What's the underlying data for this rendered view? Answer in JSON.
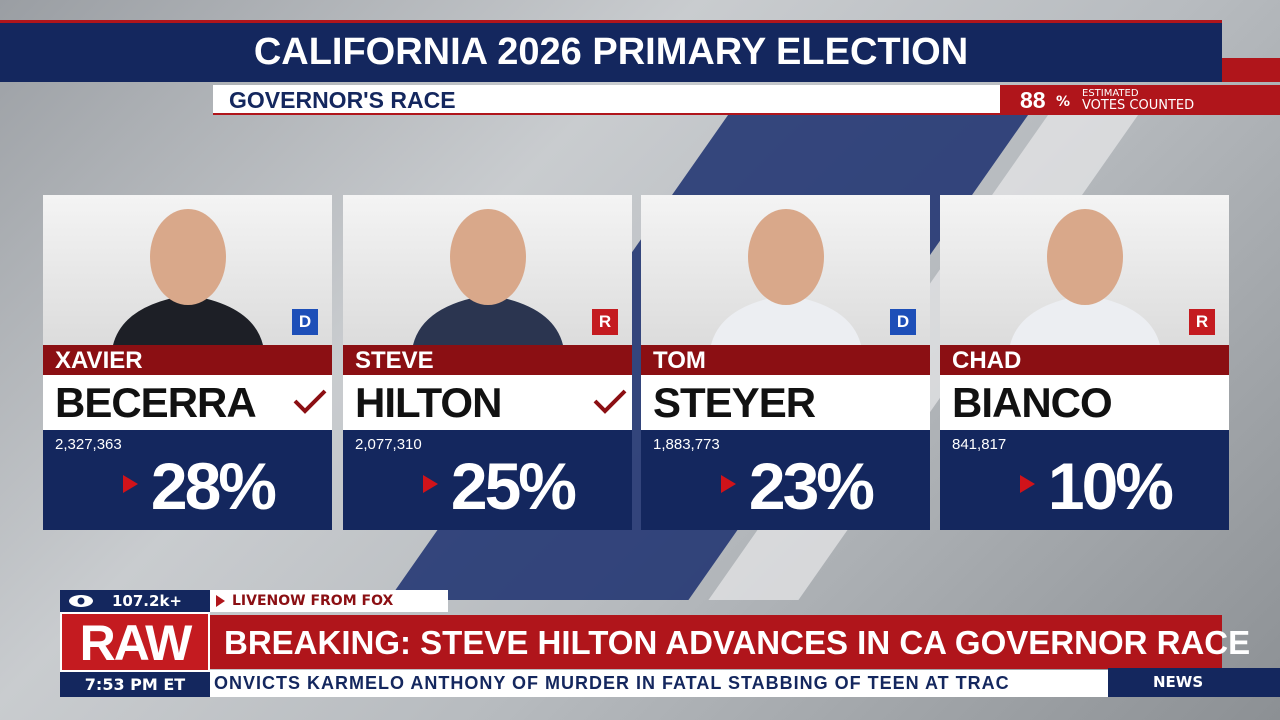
{
  "header": {
    "title": "CALIFORNIA 2026 PRIMARY ELECTION",
    "subtitle": "GOVERNOR'S RACE",
    "counted": {
      "value": "88",
      "unit": "%",
      "line1": "ESTIMATED",
      "line2": "VOTES COUNTED"
    }
  },
  "candidates": [
    {
      "first": "XAVIER",
      "last": "BECERRA",
      "party": "D",
      "votes": "2,327,363",
      "percent": "28%",
      "winner": true
    },
    {
      "first": "STEVE",
      "last": "HILTON",
      "party": "R",
      "votes": "2,077,310",
      "percent": "25%",
      "winner": true
    },
    {
      "first": "TOM",
      "last": "STEYER",
      "party": "D",
      "votes": "1,883,773",
      "percent": "23%",
      "winner": false
    },
    {
      "first": "CHAD",
      "last": "BIANCO",
      "party": "R",
      "votes": "841,817",
      "percent": "10%",
      "winner": false
    }
  ],
  "lower_third": {
    "viewers": "107.2k+",
    "source": "LIVENOW FROM FOX",
    "brand": "RAW",
    "headline": "BREAKING: STEVE HILTON ADVANCES IN CA GOVERNOR RACE",
    "time": "7:53 PM ET",
    "ticker": "ONVICTS KARMELO ANTHONY OF MURDER IN FATAL STABBING OF TEEN AT TRAC",
    "ticker_label": "NEWS"
  }
}
